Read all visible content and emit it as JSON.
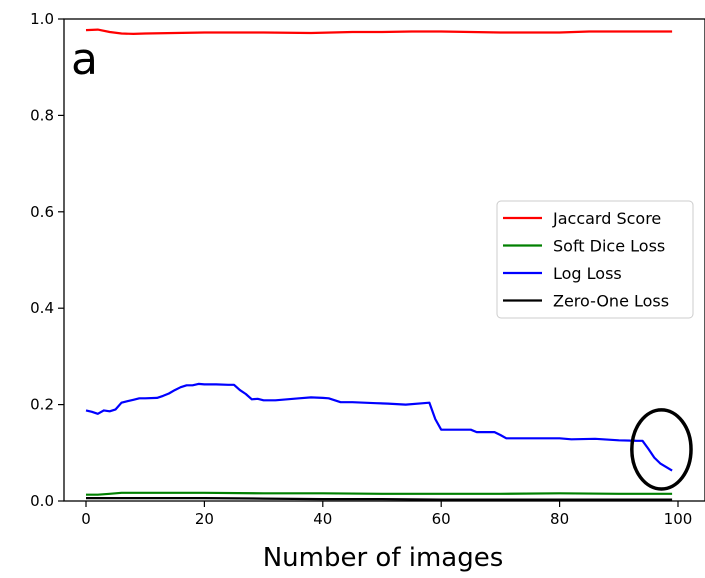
{
  "chart_data": {
    "type": "line",
    "panel_label": "a",
    "title": "",
    "xlabel": "Number of images",
    "ylabel": "",
    "xlim": [
      -4,
      103
    ],
    "ylim": [
      0,
      1.0
    ],
    "xticks": [
      0,
      20,
      40,
      60,
      80,
      100
    ],
    "yticks": [
      0.0,
      0.2,
      0.4,
      0.6,
      0.8,
      1.0
    ],
    "xtick_labels": [
      "0",
      "20",
      "40",
      "60",
      "80",
      "100"
    ],
    "ytick_labels": [
      "0.0",
      "0.2",
      "0.4",
      "0.6",
      "0.8",
      "1.0"
    ],
    "grid": false,
    "legend_position": "center-right",
    "series": [
      {
        "name": "Jaccard Score",
        "color": "#ff0000",
        "x": [
          0,
          2,
          4,
          6,
          8,
          10,
          15,
          20,
          25,
          30,
          38,
          45,
          50,
          55,
          60,
          65,
          70,
          75,
          80,
          85,
          90,
          95,
          99
        ],
        "y": [
          0.977,
          0.978,
          0.973,
          0.97,
          0.969,
          0.97,
          0.971,
          0.972,
          0.972,
          0.972,
          0.971,
          0.973,
          0.973,
          0.974,
          0.974,
          0.973,
          0.972,
          0.972,
          0.972,
          0.974,
          0.974,
          0.974,
          0.974
        ]
      },
      {
        "name": "Soft Dice Loss",
        "color": "#008000",
        "x": [
          0,
          2,
          4,
          6,
          10,
          20,
          30,
          40,
          50,
          60,
          70,
          80,
          90,
          99
        ],
        "y": [
          0.013,
          0.013,
          0.015,
          0.017,
          0.017,
          0.017,
          0.016,
          0.016,
          0.015,
          0.015,
          0.015,
          0.016,
          0.015,
          0.015
        ]
      },
      {
        "name": "Log Loss",
        "color": "#0000ff",
        "x": [
          0,
          1,
          2,
          3,
          4,
          5,
          6,
          7,
          8,
          9,
          10,
          12,
          13,
          14,
          15,
          16,
          17,
          18,
          19,
          20,
          22,
          24,
          25,
          26,
          27,
          28,
          29,
          30,
          32,
          34,
          36,
          38,
          40,
          41,
          43,
          45,
          47,
          49,
          51,
          54,
          57,
          58,
          59,
          60,
          62,
          65,
          66,
          67,
          69,
          70,
          71,
          75,
          80,
          82,
          86,
          90,
          93,
          94,
          95,
          96,
          97,
          99
        ],
        "y": [
          0.188,
          0.185,
          0.181,
          0.188,
          0.186,
          0.19,
          0.204,
          0.207,
          0.21,
          0.213,
          0.213,
          0.214,
          0.218,
          0.223,
          0.23,
          0.236,
          0.24,
          0.24,
          0.243,
          0.242,
          0.242,
          0.241,
          0.241,
          0.23,
          0.222,
          0.211,
          0.212,
          0.209,
          0.209,
          0.211,
          0.213,
          0.215,
          0.214,
          0.213,
          0.205,
          0.205,
          0.204,
          0.203,
          0.202,
          0.2,
          0.203,
          0.204,
          0.17,
          0.148,
          0.148,
          0.148,
          0.143,
          0.143,
          0.143,
          0.137,
          0.13,
          0.13,
          0.13,
          0.128,
          0.129,
          0.126,
          0.125,
          0.125,
          0.108,
          0.09,
          0.078,
          0.063
        ]
      },
      {
        "name": "Zero-One Loss",
        "color": "#000000",
        "x": [
          0,
          10,
          20,
          30,
          40,
          50,
          60,
          70,
          80,
          90,
          99
        ],
        "y": [
          0.006,
          0.006,
          0.006,
          0.005,
          0.004,
          0.004,
          0.003,
          0.003,
          0.003,
          0.003,
          0.003
        ]
      }
    ],
    "annotations": [
      {
        "type": "ellipse",
        "cx": 97.2,
        "cy": 0.107,
        "rx": 5.0,
        "ry": 0.082,
        "color": "#000000"
      }
    ]
  }
}
